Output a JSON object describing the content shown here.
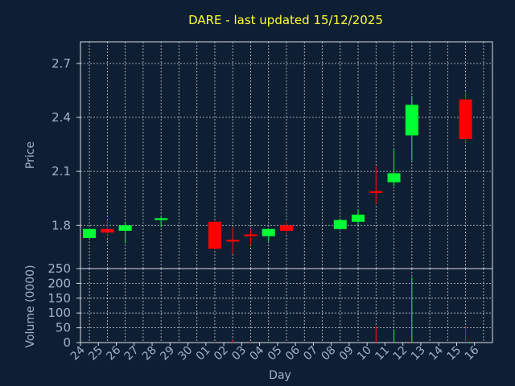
{
  "chart_data": {
    "type": "candlestick",
    "title": "DARE - last updated 15/12/2025",
    "colors": {
      "background": "#0f1f33",
      "up": "#00ff33",
      "down": "#ff0000",
      "grid": "#d8dde3",
      "title": "#ffff33",
      "axis_text": "#9fb3c8",
      "neutral": "#00ff33"
    },
    "price_panel": {
      "ylabel": "Price",
      "ylim": [
        1.56,
        2.82
      ],
      "yticks": [
        "1.8",
        "2.1",
        "2.4",
        "2.7"
      ],
      "ytick_values": [
        1.8,
        2.1,
        2.4,
        2.7
      ],
      "grid": true
    },
    "volume_panel": {
      "ylabel": "Volume (0000)",
      "ylim": [
        0,
        250
      ],
      "yticks": [
        "0",
        "50",
        "100",
        "150",
        "200",
        "250"
      ],
      "ytick_values": [
        0,
        50,
        100,
        150,
        200,
        250
      ],
      "grid": true
    },
    "xlabel": "Day",
    "x_ticks": [
      "24",
      "25",
      "26",
      "27",
      "28",
      "29",
      "30",
      "01",
      "02",
      "03",
      "04",
      "05",
      "06",
      "07",
      "08",
      "09",
      "10",
      "11",
      "12",
      "13",
      "14",
      "15",
      "16"
    ],
    "candles": [
      {
        "day": "24",
        "open": 1.73,
        "high": 1.78,
        "low": 1.73,
        "close": 1.78
      },
      {
        "day": "25",
        "open": 1.78,
        "high": 1.83,
        "low": 1.74,
        "close": 1.76
      },
      {
        "day": "26",
        "open": 1.77,
        "high": 1.82,
        "low": 1.7,
        "close": 1.8
      },
      {
        "day": "28",
        "open": 1.83,
        "high": 1.85,
        "low": 1.79,
        "close": 1.84
      },
      {
        "day": "01",
        "open": 1.82,
        "high": 1.83,
        "low": 1.67,
        "close": 1.67
      },
      {
        "day": "02",
        "open": 1.72,
        "high": 1.79,
        "low": 1.64,
        "close": 1.71
      },
      {
        "day": "03",
        "open": 1.75,
        "high": 1.78,
        "low": 1.69,
        "close": 1.74
      },
      {
        "day": "04",
        "open": 1.74,
        "high": 1.78,
        "low": 1.71,
        "close": 1.78
      },
      {
        "day": "05",
        "open": 1.8,
        "high": 1.82,
        "low": 1.75,
        "close": 1.77
      },
      {
        "day": "08",
        "open": 1.78,
        "high": 1.84,
        "low": 1.78,
        "close": 1.83
      },
      {
        "day": "09",
        "open": 1.82,
        "high": 1.89,
        "low": 1.8,
        "close": 1.86
      },
      {
        "day": "10",
        "open": 1.99,
        "high": 2.13,
        "low": 1.92,
        "close": 1.98
      },
      {
        "day": "11",
        "open": 2.04,
        "high": 2.22,
        "low": 2.02,
        "close": 2.09
      },
      {
        "day": "12",
        "open": 2.3,
        "high": 2.52,
        "low": 2.16,
        "close": 2.47
      },
      {
        "day": "15",
        "open": 2.5,
        "high": 2.54,
        "low": 2.26,
        "close": 2.28
      }
    ],
    "volume": [
      {
        "day": "24",
        "value": 0,
        "dir": "up"
      },
      {
        "day": "25",
        "value": 0,
        "dir": "down"
      },
      {
        "day": "26",
        "value": 2,
        "dir": "up"
      },
      {
        "day": "28",
        "value": 0,
        "dir": "up"
      },
      {
        "day": "01",
        "value": 2,
        "dir": "down"
      },
      {
        "day": "02",
        "value": 10,
        "dir": "down"
      },
      {
        "day": "03",
        "value": 3,
        "dir": "down"
      },
      {
        "day": "04",
        "value": 3,
        "dir": "up"
      },
      {
        "day": "05",
        "value": 1,
        "dir": "down"
      },
      {
        "day": "08",
        "value": 0,
        "dir": "up"
      },
      {
        "day": "09",
        "value": 0,
        "dir": "up"
      },
      {
        "day": "10",
        "value": 55,
        "dir": "down"
      },
      {
        "day": "11",
        "value": 45,
        "dir": "up"
      },
      {
        "day": "12",
        "value": 220,
        "dir": "up"
      },
      {
        "day": "15",
        "value": 52,
        "dir": "down"
      }
    ]
  }
}
